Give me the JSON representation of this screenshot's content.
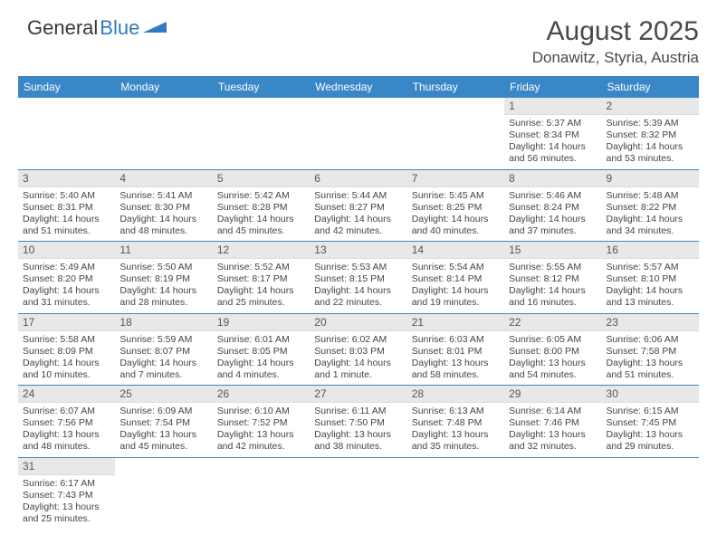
{
  "logo": {
    "part1": "General",
    "part2": "Blue"
  },
  "header": {
    "month": "August 2025",
    "location": "Donawitz, Styria, Austria"
  },
  "colors": {
    "header_bg": "#3a87c7",
    "header_text": "#ffffff",
    "daynum_bg": "#e8e8e8",
    "row_divider": "#3a87c7",
    "text": "#444444",
    "logo_blue": "#2f7ac0"
  },
  "weekdays": [
    "Sunday",
    "Monday",
    "Tuesday",
    "Wednesday",
    "Thursday",
    "Friday",
    "Saturday"
  ],
  "weeks": [
    [
      null,
      null,
      null,
      null,
      null,
      {
        "n": "1",
        "sr": "Sunrise: 5:37 AM",
        "ss": "Sunset: 8:34 PM",
        "d1": "Daylight: 14 hours",
        "d2": "and 56 minutes."
      },
      {
        "n": "2",
        "sr": "Sunrise: 5:39 AM",
        "ss": "Sunset: 8:32 PM",
        "d1": "Daylight: 14 hours",
        "d2": "and 53 minutes."
      }
    ],
    [
      {
        "n": "3",
        "sr": "Sunrise: 5:40 AM",
        "ss": "Sunset: 8:31 PM",
        "d1": "Daylight: 14 hours",
        "d2": "and 51 minutes."
      },
      {
        "n": "4",
        "sr": "Sunrise: 5:41 AM",
        "ss": "Sunset: 8:30 PM",
        "d1": "Daylight: 14 hours",
        "d2": "and 48 minutes."
      },
      {
        "n": "5",
        "sr": "Sunrise: 5:42 AM",
        "ss": "Sunset: 8:28 PM",
        "d1": "Daylight: 14 hours",
        "d2": "and 45 minutes."
      },
      {
        "n": "6",
        "sr": "Sunrise: 5:44 AM",
        "ss": "Sunset: 8:27 PM",
        "d1": "Daylight: 14 hours",
        "d2": "and 42 minutes."
      },
      {
        "n": "7",
        "sr": "Sunrise: 5:45 AM",
        "ss": "Sunset: 8:25 PM",
        "d1": "Daylight: 14 hours",
        "d2": "and 40 minutes."
      },
      {
        "n": "8",
        "sr": "Sunrise: 5:46 AM",
        "ss": "Sunset: 8:24 PM",
        "d1": "Daylight: 14 hours",
        "d2": "and 37 minutes."
      },
      {
        "n": "9",
        "sr": "Sunrise: 5:48 AM",
        "ss": "Sunset: 8:22 PM",
        "d1": "Daylight: 14 hours",
        "d2": "and 34 minutes."
      }
    ],
    [
      {
        "n": "10",
        "sr": "Sunrise: 5:49 AM",
        "ss": "Sunset: 8:20 PM",
        "d1": "Daylight: 14 hours",
        "d2": "and 31 minutes."
      },
      {
        "n": "11",
        "sr": "Sunrise: 5:50 AM",
        "ss": "Sunset: 8:19 PM",
        "d1": "Daylight: 14 hours",
        "d2": "and 28 minutes."
      },
      {
        "n": "12",
        "sr": "Sunrise: 5:52 AM",
        "ss": "Sunset: 8:17 PM",
        "d1": "Daylight: 14 hours",
        "d2": "and 25 minutes."
      },
      {
        "n": "13",
        "sr": "Sunrise: 5:53 AM",
        "ss": "Sunset: 8:15 PM",
        "d1": "Daylight: 14 hours",
        "d2": "and 22 minutes."
      },
      {
        "n": "14",
        "sr": "Sunrise: 5:54 AM",
        "ss": "Sunset: 8:14 PM",
        "d1": "Daylight: 14 hours",
        "d2": "and 19 minutes."
      },
      {
        "n": "15",
        "sr": "Sunrise: 5:55 AM",
        "ss": "Sunset: 8:12 PM",
        "d1": "Daylight: 14 hours",
        "d2": "and 16 minutes."
      },
      {
        "n": "16",
        "sr": "Sunrise: 5:57 AM",
        "ss": "Sunset: 8:10 PM",
        "d1": "Daylight: 14 hours",
        "d2": "and 13 minutes."
      }
    ],
    [
      {
        "n": "17",
        "sr": "Sunrise: 5:58 AM",
        "ss": "Sunset: 8:09 PM",
        "d1": "Daylight: 14 hours",
        "d2": "and 10 minutes."
      },
      {
        "n": "18",
        "sr": "Sunrise: 5:59 AM",
        "ss": "Sunset: 8:07 PM",
        "d1": "Daylight: 14 hours",
        "d2": "and 7 minutes."
      },
      {
        "n": "19",
        "sr": "Sunrise: 6:01 AM",
        "ss": "Sunset: 8:05 PM",
        "d1": "Daylight: 14 hours",
        "d2": "and 4 minutes."
      },
      {
        "n": "20",
        "sr": "Sunrise: 6:02 AM",
        "ss": "Sunset: 8:03 PM",
        "d1": "Daylight: 14 hours",
        "d2": "and 1 minute."
      },
      {
        "n": "21",
        "sr": "Sunrise: 6:03 AM",
        "ss": "Sunset: 8:01 PM",
        "d1": "Daylight: 13 hours",
        "d2": "and 58 minutes."
      },
      {
        "n": "22",
        "sr": "Sunrise: 6:05 AM",
        "ss": "Sunset: 8:00 PM",
        "d1": "Daylight: 13 hours",
        "d2": "and 54 minutes."
      },
      {
        "n": "23",
        "sr": "Sunrise: 6:06 AM",
        "ss": "Sunset: 7:58 PM",
        "d1": "Daylight: 13 hours",
        "d2": "and 51 minutes."
      }
    ],
    [
      {
        "n": "24",
        "sr": "Sunrise: 6:07 AM",
        "ss": "Sunset: 7:56 PM",
        "d1": "Daylight: 13 hours",
        "d2": "and 48 minutes."
      },
      {
        "n": "25",
        "sr": "Sunrise: 6:09 AM",
        "ss": "Sunset: 7:54 PM",
        "d1": "Daylight: 13 hours",
        "d2": "and 45 minutes."
      },
      {
        "n": "26",
        "sr": "Sunrise: 6:10 AM",
        "ss": "Sunset: 7:52 PM",
        "d1": "Daylight: 13 hours",
        "d2": "and 42 minutes."
      },
      {
        "n": "27",
        "sr": "Sunrise: 6:11 AM",
        "ss": "Sunset: 7:50 PM",
        "d1": "Daylight: 13 hours",
        "d2": "and 38 minutes."
      },
      {
        "n": "28",
        "sr": "Sunrise: 6:13 AM",
        "ss": "Sunset: 7:48 PM",
        "d1": "Daylight: 13 hours",
        "d2": "and 35 minutes."
      },
      {
        "n": "29",
        "sr": "Sunrise: 6:14 AM",
        "ss": "Sunset: 7:46 PM",
        "d1": "Daylight: 13 hours",
        "d2": "and 32 minutes."
      },
      {
        "n": "30",
        "sr": "Sunrise: 6:15 AM",
        "ss": "Sunset: 7:45 PM",
        "d1": "Daylight: 13 hours",
        "d2": "and 29 minutes."
      }
    ],
    [
      {
        "n": "31",
        "sr": "Sunrise: 6:17 AM",
        "ss": "Sunset: 7:43 PM",
        "d1": "Daylight: 13 hours",
        "d2": "and 25 minutes."
      },
      null,
      null,
      null,
      null,
      null,
      null
    ]
  ]
}
